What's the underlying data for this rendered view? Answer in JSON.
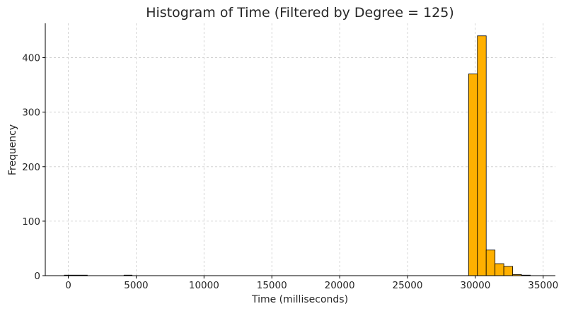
{
  "chart_data": {
    "type": "bar",
    "title": "Histogram of Time (Filtered by Degree = 125)",
    "xlabel": "Time (milliseconds)",
    "ylabel": "Frequency",
    "xlim": [
      -1700,
      35900
    ],
    "ylim": [
      0,
      463
    ],
    "xticks": [
      0,
      5000,
      10000,
      15000,
      20000,
      25000,
      30000,
      35000
    ],
    "yticks": [
      0,
      100,
      200,
      300,
      400
    ],
    "grid": true,
    "bar_color": "#ffb000",
    "bin_edges": [
      29500,
      30150,
      30800,
      31450,
      32100,
      32750,
      33400,
      34050
    ],
    "values": [
      370,
      440,
      47,
      22,
      17,
      2,
      1
    ],
    "small_bars": [
      {
        "x0": -300,
        "x1": 1400,
        "value": 1
      },
      {
        "x0": 4100,
        "x1": 4700,
        "value": 1
      }
    ]
  }
}
